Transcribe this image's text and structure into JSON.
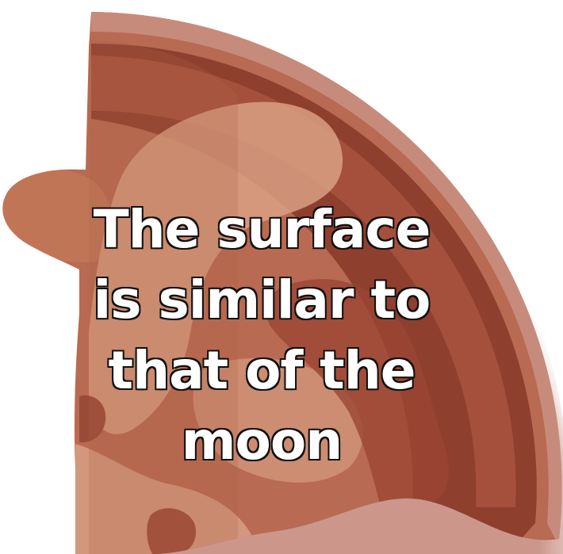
{
  "caption": {
    "lines": [
      "The surface",
      "is similar to",
      "that of the",
      "moon"
    ]
  },
  "illustration": {
    "subject": "planet-crust-cross-section",
    "colors": {
      "rim_fade": "#c98f80",
      "outer_layer": "#8f3f2e",
      "mid_layer": "#a5503d",
      "inner_layer": "#b96a52",
      "left_lobe": "#bf7356",
      "highlight": "#d9a084",
      "dark_spot": "#9a4a38"
    }
  }
}
